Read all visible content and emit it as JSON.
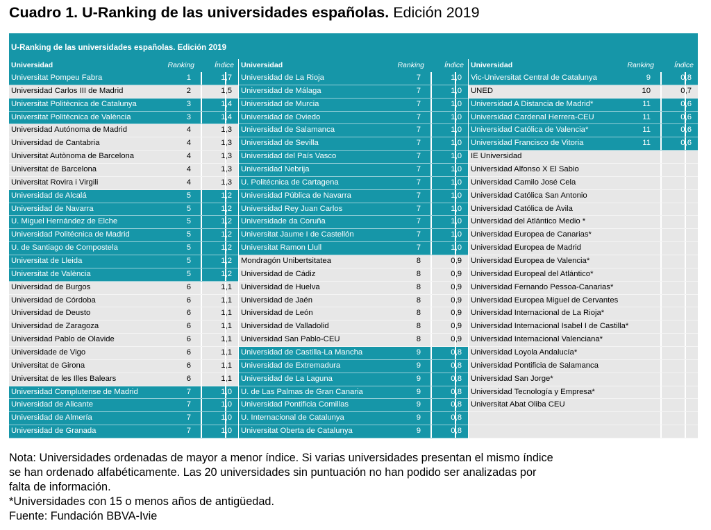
{
  "title": {
    "bold": "Cuadro 1. U-Ranking de las universidades españolas.",
    "rest": " Edición 2019"
  },
  "table": {
    "header": "U-Ranking de las universidades españolas. Edición 2019",
    "col_labels": {
      "university": "Universidad",
      "ranking": "Ranking",
      "index": "Índice"
    },
    "colors": {
      "teal": "#1696a8",
      "grey": "#e7e7e7"
    },
    "columns": [
      [
        {
          "name": "Universitat Pompeu Fabra",
          "rank": "1",
          "idx": "1,7",
          "style": "teal"
        },
        {
          "name": "Universidad Carlos III de Madrid",
          "rank": "2",
          "idx": "1,5",
          "style": "grey"
        },
        {
          "name": "Universitat Politècnica de Catalunya",
          "rank": "3",
          "idx": "1,4",
          "style": "teal"
        },
        {
          "name": "Universitat Politècnica de València",
          "rank": "3",
          "idx": "1,4",
          "style": "teal"
        },
        {
          "name": "Universidad Autónoma de Madrid",
          "rank": "4",
          "idx": "1,3",
          "style": "grey"
        },
        {
          "name": "Universidad de Cantabria",
          "rank": "4",
          "idx": "1,3",
          "style": "grey"
        },
        {
          "name": "Universitat Autònoma de Barcelona",
          "rank": "4",
          "idx": "1,3",
          "style": "grey"
        },
        {
          "name": "Universitat de Barcelona",
          "rank": "4",
          "idx": "1,3",
          "style": "grey"
        },
        {
          "name": "Universitat Rovira i Virgili",
          "rank": "4",
          "idx": "1,3",
          "style": "grey"
        },
        {
          "name": "Universidad de Alcalá",
          "rank": "5",
          "idx": "1,2",
          "style": "teal"
        },
        {
          "name": "Universidad de Navarra",
          "rank": "5",
          "idx": "1,2",
          "style": "teal"
        },
        {
          "name": "U. Miguel Hernández de Elche",
          "rank": "5",
          "idx": "1,2",
          "style": "teal"
        },
        {
          "name": "Universidad Politécnica de Madrid",
          "rank": "5",
          "idx": "1,2",
          "style": "teal"
        },
        {
          "name": "U. de Santiago de Compostela",
          "rank": "5",
          "idx": "1,2",
          "style": "teal"
        },
        {
          "name": "Universitat de Lleida",
          "rank": "5",
          "idx": "1,2",
          "style": "teal"
        },
        {
          "name": "Universitat de València",
          "rank": "5",
          "idx": "1,2",
          "style": "teal"
        },
        {
          "name": "Universidad de Burgos",
          "rank": "6",
          "idx": "1,1",
          "style": "grey"
        },
        {
          "name": "Universidad de Córdoba",
          "rank": "6",
          "idx": "1,1",
          "style": "grey"
        },
        {
          "name": "Universidad de Deusto",
          "rank": "6",
          "idx": "1,1",
          "style": "grey"
        },
        {
          "name": "Universidad de Zaragoza",
          "rank": "6",
          "idx": "1,1",
          "style": "grey"
        },
        {
          "name": "Universidad Pablo de Olavide",
          "rank": "6",
          "idx": "1,1",
          "style": "grey"
        },
        {
          "name": "Universidade de Vigo",
          "rank": "6",
          "idx": "1,1",
          "style": "grey"
        },
        {
          "name": "Universitat de Girona",
          "rank": "6",
          "idx": "1,1",
          "style": "grey"
        },
        {
          "name": "Universitat de les Illes Balears",
          "rank": "6",
          "idx": "1,1",
          "style": "grey"
        },
        {
          "name": "Universidad Complutense de Madrid",
          "rank": "7",
          "idx": "1,0",
          "style": "teal"
        },
        {
          "name": "Universidad de Alicante",
          "rank": "7",
          "idx": "1,0",
          "style": "teal"
        },
        {
          "name": "Universidad de Almería",
          "rank": "7",
          "idx": "1,0",
          "style": "teal"
        },
        {
          "name": "Universidad de Granada",
          "rank": "7",
          "idx": "1,0",
          "style": "teal"
        }
      ],
      [
        {
          "name": "Universidad de La Rioja",
          "rank": "7",
          "idx": "1,0",
          "style": "teal"
        },
        {
          "name": "Universidad de Málaga",
          "rank": "7",
          "idx": "1,0",
          "style": "teal"
        },
        {
          "name": "Universidad de Murcia",
          "rank": "7",
          "idx": "1,0",
          "style": "teal"
        },
        {
          "name": "Universidad de Oviedo",
          "rank": "7",
          "idx": "1,0",
          "style": "teal"
        },
        {
          "name": "Universidad de Salamanca",
          "rank": "7",
          "idx": "1,0",
          "style": "teal"
        },
        {
          "name": "Universidad de Sevilla",
          "rank": "7",
          "idx": "1,0",
          "style": "teal"
        },
        {
          "name": "Universidad del País Vasco",
          "rank": "7",
          "idx": "1,0",
          "style": "teal"
        },
        {
          "name": "Universidad Nebrija",
          "rank": "7",
          "idx": "1,0",
          "style": "teal"
        },
        {
          "name": "U. Politécnica de Cartagena",
          "rank": "7",
          "idx": "1,0",
          "style": "teal"
        },
        {
          "name": "Universidad Pública de Navarra",
          "rank": "7",
          "idx": "1,0",
          "style": "teal"
        },
        {
          "name": "Universidad Rey Juan Carlos",
          "rank": "7",
          "idx": "1,0",
          "style": "teal"
        },
        {
          "name": "Universidade da Coruña",
          "rank": "7",
          "idx": "1,0",
          "style": "teal"
        },
        {
          "name": "Universitat Jaume I de Castellón",
          "rank": "7",
          "idx": "1,0",
          "style": "teal"
        },
        {
          "name": "Universitat Ramon Llull",
          "rank": "7",
          "idx": "1,0",
          "style": "teal"
        },
        {
          "name": "Mondragón Unibertsitatea",
          "rank": "8",
          "idx": "0,9",
          "style": "grey"
        },
        {
          "name": "Universidad de Cádiz",
          "rank": "8",
          "idx": "0,9",
          "style": "grey"
        },
        {
          "name": "Universidad de Huelva",
          "rank": "8",
          "idx": "0,9",
          "style": "grey"
        },
        {
          "name": "Universidad de Jaén",
          "rank": "8",
          "idx": "0,9",
          "style": "grey"
        },
        {
          "name": "Universidad de León",
          "rank": "8",
          "idx": "0,9",
          "style": "grey"
        },
        {
          "name": "Universidad de Valladolid",
          "rank": "8",
          "idx": "0,9",
          "style": "grey"
        },
        {
          "name": "Universidad San Pablo-CEU",
          "rank": "8",
          "idx": "0,9",
          "style": "grey"
        },
        {
          "name": "Universidad de Castilla-La Mancha",
          "rank": "9",
          "idx": "0,8",
          "style": "teal"
        },
        {
          "name": "Universidad de Extremadura",
          "rank": "9",
          "idx": "0,8",
          "style": "teal"
        },
        {
          "name": "Universidad de La Laguna",
          "rank": "9",
          "idx": "0,8",
          "style": "teal"
        },
        {
          "name": "U. de Las Palmas de Gran Canaria",
          "rank": "9",
          "idx": "0,8",
          "style": "teal"
        },
        {
          "name": "Universidad Pontificia Comillas",
          "rank": "9",
          "idx": "0,8",
          "style": "teal"
        },
        {
          "name": "U. Internacional de Catalunya",
          "rank": "9",
          "idx": "0,8",
          "style": "teal"
        },
        {
          "name": "Universitat Oberta de Catalunya",
          "rank": "9",
          "idx": "0,8",
          "style": "teal"
        }
      ],
      [
        {
          "name": "Vic-Universitat Central de Catalunya",
          "rank": "9",
          "idx": "0,8",
          "style": "teal"
        },
        {
          "name": "UNED",
          "rank": "10",
          "idx": "0,7",
          "style": "grey"
        },
        {
          "name": "Universidad A Distancia de Madrid*",
          "rank": "11",
          "idx": "0,6",
          "style": "teal"
        },
        {
          "name": "Universidad Cardenal Herrera-CEU",
          "rank": "11",
          "idx": "0,6",
          "style": "teal"
        },
        {
          "name": "Universidad Católica de Valencia*",
          "rank": "11",
          "idx": "0,6",
          "style": "teal"
        },
        {
          "name": "Universidad Francisco de Vitoria",
          "rank": "11",
          "idx": "0,6",
          "style": "teal"
        },
        {
          "name": "IE Universidad",
          "rank": "",
          "idx": "",
          "style": "grey"
        },
        {
          "name": "Universidad Alfonso X El Sabio",
          "rank": "",
          "idx": "",
          "style": "grey"
        },
        {
          "name": "Universidad Camilo José Cela",
          "rank": "",
          "idx": "",
          "style": "grey"
        },
        {
          "name": "Universidad Católica San Antonio",
          "rank": "",
          "idx": "",
          "style": "grey"
        },
        {
          "name": "Universidad Católica de Ávila",
          "rank": "",
          "idx": "",
          "style": "grey"
        },
        {
          "name": "Universidad del Atlántico Medio *",
          "rank": "",
          "idx": "",
          "style": "grey"
        },
        {
          "name": "Universidad Europea de Canarias*",
          "rank": "",
          "idx": "",
          "style": "grey"
        },
        {
          "name": "Universidad Europea de Madrid",
          "rank": "",
          "idx": "",
          "style": "grey"
        },
        {
          "name": "Universidad Europea de Valencia*",
          "rank": "",
          "idx": "",
          "style": "grey"
        },
        {
          "name": "Universidad Europeal del Atlántico*",
          "rank": "",
          "idx": "",
          "style": "grey"
        },
        {
          "name": "Universidad Fernando Pessoa-Canarias*",
          "rank": "",
          "idx": "",
          "style": "grey"
        },
        {
          "name": "Universidad Europea Miguel de Cervantes",
          "rank": "",
          "idx": "",
          "style": "grey"
        },
        {
          "name": "Universidad Internacional de La Rioja*",
          "rank": "",
          "idx": "",
          "style": "grey"
        },
        {
          "name": "Universidad Internacional Isabel I de Castilla*",
          "rank": "",
          "idx": "",
          "style": "grey"
        },
        {
          "name": "Universidad Internacional Valenciana*",
          "rank": "",
          "idx": "",
          "style": "grey"
        },
        {
          "name": "Universidad Loyola Andalucía*",
          "rank": "",
          "idx": "",
          "style": "grey"
        },
        {
          "name": "Universidad Pontificia de Salamanca",
          "rank": "",
          "idx": "",
          "style": "grey"
        },
        {
          "name": "Universidad San Jorge*",
          "rank": "",
          "idx": "",
          "style": "grey"
        },
        {
          "name": "Universidad Tecnología y Empresa*",
          "rank": "",
          "idx": "",
          "style": "grey"
        },
        {
          "name": "Universitat Abat Oliba CEU",
          "rank": "",
          "idx": "",
          "style": "grey"
        },
        {
          "name": "",
          "rank": "",
          "idx": "",
          "style": "grey"
        },
        {
          "name": "",
          "rank": "",
          "idx": "",
          "style": "grey"
        }
      ]
    ]
  },
  "notes": [
    "Nota: Universidades ordenadas de mayor a menor índice. Si varias universidades presentan el mismo índice",
    "se han ordenado alfabéticamente. Las 20 universidades sin puntuación no han podido ser analizadas por",
    "falta de información.",
    "*Universidades con 15 o menos años de antigüedad.",
    "Fuente: Fundación BBVA-Ivie"
  ]
}
